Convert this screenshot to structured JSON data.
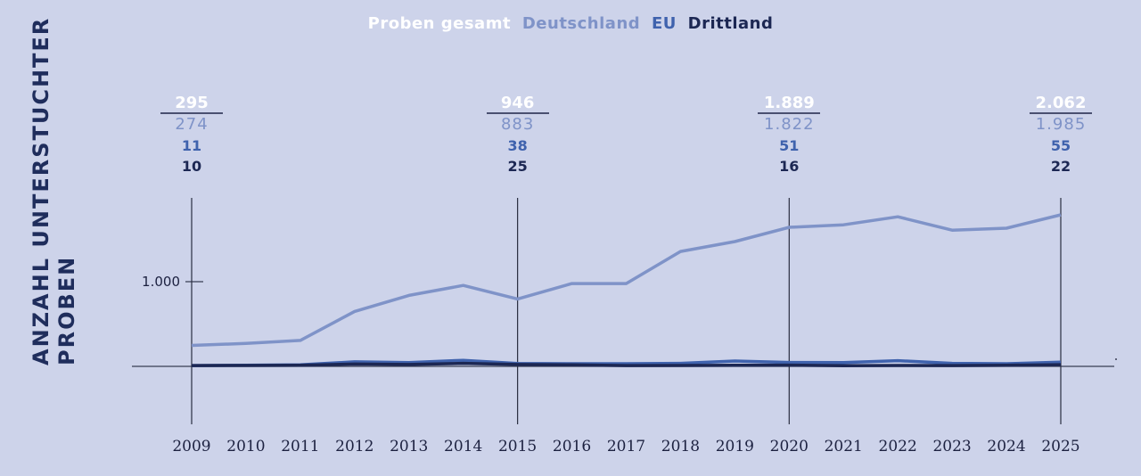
{
  "legend": {
    "total": "Proben gesamt",
    "de": "Deutschland",
    "eu": "EU",
    "dritt": "Drittland"
  },
  "colors": {
    "background": "#cdd3ea",
    "total": "#ffffff",
    "de": "#7f93c8",
    "eu": "#3f62ad",
    "dritt": "#1c2753",
    "axis": "#2a2e40"
  },
  "yaxis_title": [
    "ANZAHL UNTERSTUCHTER",
    "PROBEN"
  ],
  "annotations": [
    {
      "year": "2009",
      "total": "295",
      "de": "274",
      "eu": "11",
      "dritt": "10"
    },
    {
      "year": "2015",
      "total": "946",
      "de": "883",
      "eu": "38",
      "dritt": "25"
    },
    {
      "year": "2020",
      "total": "1.889",
      "de": "1.822",
      "eu": "51",
      "dritt": "16"
    },
    {
      "year": "2025",
      "total": "2.062",
      "de": "1.985",
      "eu": "55",
      "dritt": "22"
    }
  ],
  "chart_data": {
    "type": "line",
    "title": "",
    "xlabel": "",
    "ylabel": "ANZAHL UNTERSTUCHTER PROBEN",
    "x": [
      "2009",
      "2010",
      "2011",
      "2012",
      "2013",
      "2014",
      "2015",
      "2016",
      "2017",
      "2018",
      "2019",
      "2020",
      "2021",
      "2022",
      "2023",
      "2024",
      "2025"
    ],
    "yticks": [
      {
        "value": 1000,
        "label": "1.000"
      }
    ],
    "ylim": [
      0,
      2100
    ],
    "grid": false,
    "legend_position": "top-center",
    "series": [
      {
        "name": "Deutschland",
        "key": "de",
        "values": [
          274,
          300,
          340,
          720,
          930,
          1060,
          883,
          1085,
          1085,
          1505,
          1635,
          1822,
          1855,
          1960,
          1785,
          1810,
          1985
        ]
      },
      {
        "name": "EU",
        "key": "eu",
        "values": [
          11,
          15,
          20,
          60,
          50,
          80,
          38,
          35,
          35,
          40,
          70,
          51,
          50,
          75,
          40,
          35,
          55
        ]
      },
      {
        "name": "Drittland",
        "key": "dritt",
        "values": [
          10,
          12,
          15,
          30,
          25,
          40,
          25,
          20,
          10,
          12,
          15,
          16,
          8,
          12,
          10,
          15,
          22
        ]
      }
    ]
  }
}
